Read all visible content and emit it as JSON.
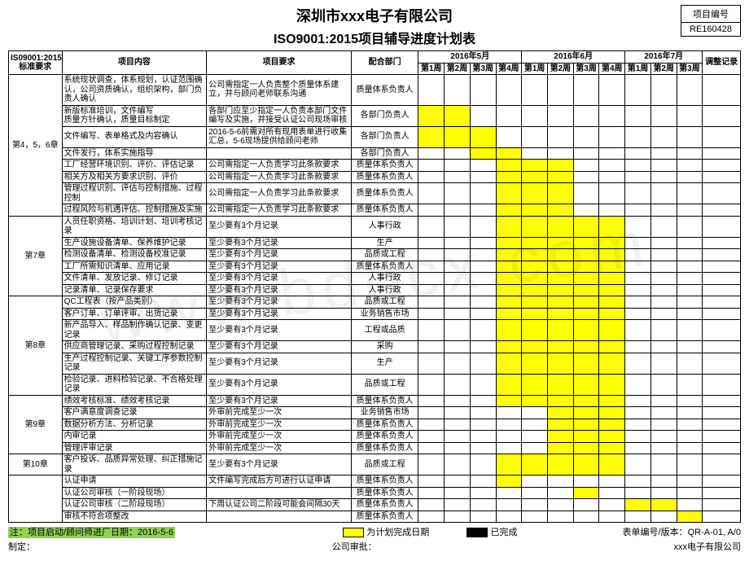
{
  "header": {
    "company": "深圳市xxx电子有限公司",
    "title": "ISO9001:2015项目辅导进度计划表",
    "proj_label": "项目编号",
    "proj_no": "RE160428"
  },
  "cols": {
    "std": "IS09001:2015标准要求",
    "content": "项目内容",
    "req": "项目要求",
    "dept": "配合部门",
    "m1": "2016年5月",
    "m2": "2016年6月",
    "m3": "2016年7月",
    "w1": "第1周",
    "w2": "第2周",
    "w3": "第3周",
    "w4": "第4周",
    "adjust": "调整记录"
  },
  "colors": {
    "planned": "#ffff00",
    "done": "#000000",
    "note_hi": "#92d050"
  },
  "groups": [
    {
      "std": "第4，5，6章",
      "rows": [
        {
          "a": "系统现状调查，体系规划，认证范围确认，公司资质确认，组织架构，部门负责人确认",
          "b": "公司需指定一人负责整个质量体系建立，并与顾问老师联系沟通",
          "c": "质量体系负责人",
          "w": [
            0,
            0,
            0,
            0,
            0,
            0,
            0,
            0,
            0,
            0,
            0
          ]
        },
        {
          "a": "新版标准培训，文件编写\n质量方针确认，质量目标制定",
          "b": "各部门应至少指定一人负责本部门文件编写及实施，并接受认证公司现场审核",
          "c": "各部门负责人",
          "w": [
            1,
            1,
            0,
            0,
            0,
            0,
            0,
            0,
            0,
            0,
            0
          ]
        },
        {
          "a": "文件编写、表单格式及内容确认",
          "b": "2016-5-6前需对所有现用表单进行收集汇总，5-6现场提供给顾问老师",
          "c": "各部门负责人",
          "w": [
            1,
            1,
            1,
            0,
            0,
            0,
            0,
            0,
            0,
            0,
            0
          ]
        },
        {
          "a": "文件发行，体系实施指导",
          "b": "",
          "c": "各部门负责人",
          "w": [
            0,
            0,
            1,
            1,
            0,
            0,
            0,
            0,
            0,
            0,
            0
          ]
        },
        {
          "a": "工厂经营环境识别、评价、评估记录",
          "b": "公司需指定一人负责学习此条款要求",
          "c": "质量体系负责人",
          "w": [
            0,
            0,
            0,
            1,
            1,
            1,
            0,
            0,
            0,
            0,
            0
          ]
        },
        {
          "a": "相关方及相关方要求识别、评价",
          "b": "公司需指定一人负责学习此条款要求",
          "c": "质量体系负责人",
          "w": [
            0,
            0,
            0,
            1,
            1,
            1,
            0,
            0,
            0,
            0,
            0
          ]
        },
        {
          "a": "管理过程识别、评估与控制措施、过程控制",
          "b": "公司需指定一人负责学习此条款要求",
          "c": "质量体系负责人",
          "w": [
            0,
            0,
            0,
            1,
            1,
            1,
            0,
            0,
            0,
            0,
            0
          ]
        },
        {
          "a": "过程风险与机遇评估、控制措施及实施",
          "b": "公司需指定一人负责学习此条款要求",
          "c": "质量体系负责人",
          "w": [
            0,
            0,
            0,
            1,
            1,
            1,
            0,
            0,
            0,
            0,
            0
          ]
        }
      ]
    },
    {
      "std": "第7章",
      "rows": [
        {
          "a": "人员任职资格、培训计划、培训考核记录",
          "b": "至少要有3个月记录",
          "c": "人事行政",
          "w": [
            0,
            0,
            0,
            1,
            1,
            1,
            1,
            1,
            0,
            0,
            0
          ]
        },
        {
          "a": "生产设施设备清单、保养维护记录",
          "b": "至少要有3个月记录",
          "c": "生产",
          "w": [
            0,
            0,
            0,
            1,
            1,
            1,
            1,
            1,
            0,
            0,
            0
          ]
        },
        {
          "a": "检测设备清单、检测设备校准记录",
          "b": "至少要有3个月记录",
          "c": "品质或工程",
          "w": [
            0,
            0,
            0,
            1,
            1,
            1,
            1,
            1,
            0,
            0,
            0
          ]
        },
        {
          "a": "工厂所需知识清单、应用记录",
          "b": "至少要有3个月记录",
          "c": "质量体系负责人",
          "w": [
            0,
            0,
            0,
            1,
            1,
            1,
            1,
            1,
            0,
            0,
            0
          ]
        },
        {
          "a": "文件清单、发放记录、修订记录",
          "b": "至少要有3个月记录",
          "c": "人事行政",
          "w": [
            0,
            0,
            0,
            1,
            1,
            1,
            1,
            1,
            0,
            0,
            0
          ]
        },
        {
          "a": "记录清单、记录保存要求",
          "b": "至少要有3个月记录",
          "c": "人事行政",
          "w": [
            0,
            0,
            0,
            1,
            1,
            1,
            1,
            1,
            0,
            0,
            0
          ]
        }
      ]
    },
    {
      "std": "第8章",
      "rows": [
        {
          "a": "QC工程表（按产品类别）",
          "b": "至少要有3个月记录",
          "c": "品质或工程",
          "w": [
            0,
            0,
            0,
            1,
            1,
            1,
            1,
            1,
            0,
            0,
            0
          ]
        },
        {
          "a": "客户订单、订单评审、出货记录",
          "b": "至少要有3个月记录",
          "c": "业务销售市场",
          "w": [
            0,
            0,
            0,
            1,
            1,
            1,
            1,
            1,
            0,
            0,
            0
          ]
        },
        {
          "a": "新产品导入、样品制作确认记录、变更记录",
          "b": "至少要有3个月记录",
          "c": "工程或品质",
          "w": [
            0,
            0,
            0,
            1,
            1,
            1,
            1,
            1,
            0,
            0,
            0
          ]
        },
        {
          "a": "供应商管理记录、采购过程控制记录",
          "b": "至少要有3个月记录",
          "c": "采购",
          "w": [
            0,
            0,
            0,
            1,
            1,
            1,
            1,
            1,
            0,
            0,
            0
          ]
        },
        {
          "a": "生产过程控制记录、关键工序参数控制记录",
          "b": "至少要有3个月记录",
          "c": "生产",
          "w": [
            0,
            0,
            0,
            1,
            1,
            1,
            1,
            1,
            0,
            0,
            0
          ]
        },
        {
          "a": "检验记录、进料检验记录、不合格处理记录",
          "b": "至少要有3个月记录",
          "c": "品质或工程",
          "w": [
            0,
            0,
            0,
            1,
            1,
            1,
            1,
            1,
            0,
            0,
            0
          ]
        }
      ]
    },
    {
      "std": "第9章",
      "rows": [
        {
          "a": "绩效考核标准、绩效考核记录",
          "b": "至少要有3个月记录",
          "c": "质量体系负责人",
          "w": [
            0,
            0,
            0,
            1,
            1,
            1,
            1,
            1,
            0,
            0,
            0
          ]
        },
        {
          "a": "客户满意度调查记录",
          "b": "外审前完成至少一次",
          "c": "业务销售市场",
          "w": [
            0,
            0,
            0,
            0,
            0,
            1,
            1,
            1,
            0,
            0,
            0
          ]
        },
        {
          "a": "数据分析方法、分析记录",
          "b": "外审前完成至少一次",
          "c": "质量体系负责人",
          "w": [
            0,
            0,
            0,
            0,
            0,
            1,
            1,
            1,
            0,
            0,
            0
          ]
        },
        {
          "a": "内审记录",
          "b": "外审前完成至少一次",
          "c": "质量体系负责人",
          "w": [
            0,
            0,
            0,
            0,
            0,
            1,
            1,
            1,
            0,
            0,
            0
          ]
        },
        {
          "a": "管理评审记录",
          "b": "外审前完成至少一次",
          "c": "质量体系负责人",
          "w": [
            0,
            0,
            0,
            0,
            0,
            1,
            1,
            1,
            0,
            0,
            0
          ]
        }
      ]
    },
    {
      "std": "第10章",
      "rows": [
        {
          "a": "客户投诉、品质异常处理、纠正措施记录",
          "b": "至少要有3个月记录",
          "c": "品质或工程",
          "w": [
            0,
            0,
            0,
            1,
            1,
            1,
            1,
            1,
            0,
            0,
            0
          ]
        }
      ]
    },
    {
      "std": "",
      "rows": [
        {
          "a": "认证申请",
          "b": "文件编写完成后方可进行认证申请",
          "c": "质量体系负责人",
          "w": [
            0,
            0,
            0,
            1,
            0,
            0,
            0,
            0,
            0,
            0,
            0
          ]
        },
        {
          "a": "认证公司审核（一阶段现场）",
          "b": "",
          "c": "质量体系负责人",
          "w": [
            0,
            0,
            0,
            0,
            0,
            0,
            1,
            0,
            0,
            0,
            0
          ]
        },
        {
          "a": "认证公司审核（二阶段现场）",
          "b": "下周认证公司二阶段可能会间隔30天",
          "c": "质量体系负责人",
          "w": [
            0,
            0,
            0,
            0,
            0,
            0,
            0,
            0,
            1,
            1,
            0
          ]
        },
        {
          "a": "审核不符合项整改",
          "b": "",
          "c": "质量体系负责人",
          "w": [
            0,
            0,
            0,
            0,
            0,
            0,
            0,
            0,
            0,
            0,
            1
          ]
        }
      ]
    }
  ],
  "footer": {
    "note": "注：项目启动/顾问师进厂日期：2016-5-6",
    "legend_plan": "为计划完成日期",
    "legend_done": "已完成",
    "form_no": "表单编号/版本：QR-A-01, A/0",
    "prep": "制定：",
    "approve": "公司审批：",
    "company_foot": "xxx电子有限公司"
  }
}
